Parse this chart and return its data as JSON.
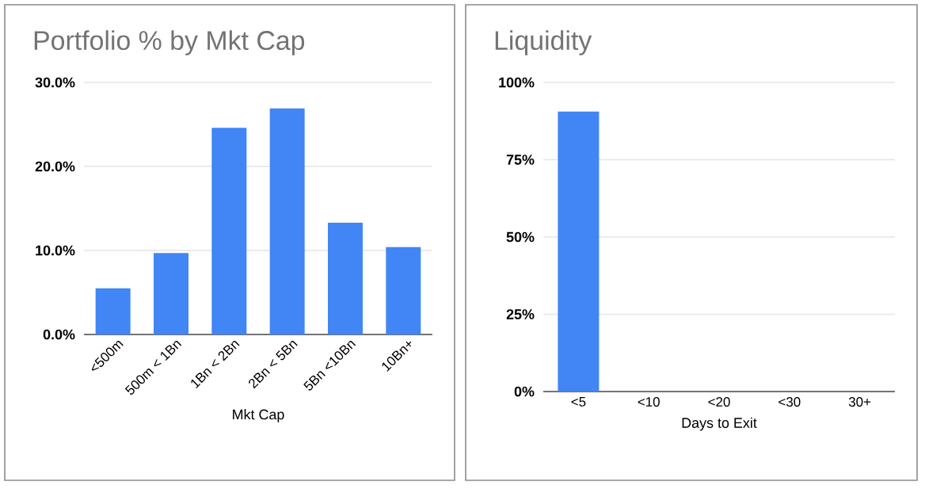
{
  "chart_data": [
    {
      "type": "bar",
      "title": "Portfolio % by Mkt Cap",
      "xlabel": "Mkt Cap",
      "categories": [
        "<500m",
        "500m < 1Bn",
        "1Bn < 2Bn",
        "2Bn < 5Bn",
        "5Bn <10Bn",
        "10Bn+"
      ],
      "values": [
        5.5,
        9.7,
        24.6,
        26.9,
        13.3,
        10.4
      ],
      "color": "#4285f4",
      "ylim": [
        0,
        30
      ],
      "yticks": [
        {
          "value": 0,
          "label": "0.0%"
        },
        {
          "value": 10,
          "label": "10.0%"
        },
        {
          "value": 20,
          "label": "20.0%"
        },
        {
          "value": 30,
          "label": "30.0%"
        }
      ],
      "grid": "y"
    },
    {
      "type": "bar",
      "title": "Liquidity",
      "xlabel": "Days to Exit",
      "categories": [
        "<5",
        "<10",
        "<20",
        "<30",
        "30+"
      ],
      "values": [
        90.6,
        0,
        0,
        0,
        0
      ],
      "color": "#4285f4",
      "ylim": [
        0,
        100
      ],
      "yticks": [
        {
          "value": 0,
          "label": "0%"
        },
        {
          "value": 25,
          "label": "25%"
        },
        {
          "value": 50,
          "label": "50%"
        },
        {
          "value": 75,
          "label": "75%"
        },
        {
          "value": 100,
          "label": "100%"
        }
      ],
      "grid": "y"
    }
  ]
}
